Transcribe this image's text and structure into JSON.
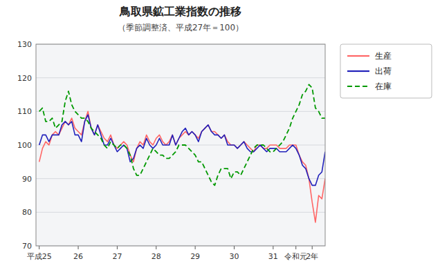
{
  "chart_data": {
    "type": "line",
    "title": "鳥取県鉱工業指数の推移",
    "subtitle": "（季節調整済、平成27年＝100）",
    "categories": [
      "平成25",
      null,
      null,
      null,
      null,
      null,
      null,
      null,
      null,
      null,
      null,
      null,
      "26",
      null,
      null,
      null,
      null,
      null,
      null,
      null,
      null,
      null,
      null,
      null,
      "27",
      null,
      null,
      null,
      null,
      null,
      null,
      null,
      null,
      null,
      null,
      null,
      "28",
      null,
      null,
      null,
      null,
      null,
      null,
      null,
      null,
      null,
      null,
      null,
      "29",
      null,
      null,
      null,
      null,
      null,
      null,
      null,
      null,
      null,
      null,
      null,
      "30",
      null,
      null,
      null,
      null,
      null,
      null,
      null,
      null,
      null,
      null,
      null,
      "31",
      null,
      null,
      null,
      null,
      null,
      null,
      "令和元",
      null,
      null,
      null,
      null,
      "2年",
      null,
      null,
      null,
      null
    ],
    "series": [
      {
        "name": "生産",
        "color": "#ff6666",
        "line_style": "solid",
        "values": [
          95,
          99,
          101,
          100,
          103,
          104,
          103,
          105,
          107,
          106,
          108,
          105,
          104,
          103,
          107,
          110,
          105,
          103,
          106,
          104,
          102,
          101,
          103,
          100,
          99,
          100,
          101,
          100,
          97,
          95,
          99,
          101,
          100,
          103,
          101,
          100,
          102,
          103,
          101,
          100,
          101,
          103,
          100,
          102,
          103,
          104,
          103,
          104,
          103,
          102,
          104,
          105,
          106,
          104,
          104,
          103,
          102,
          103,
          101,
          100,
          100,
          99,
          100,
          101,
          100,
          99,
          98,
          100,
          100,
          99,
          99,
          100,
          100,
          100,
          99,
          99,
          99,
          100,
          100,
          100,
          97,
          95,
          94,
          90,
          83,
          77,
          85,
          84,
          90
        ]
      },
      {
        "name": "出荷",
        "color": "#2222bb",
        "line_style": "solid",
        "values": [
          100,
          103,
          103,
          101,
          103,
          103,
          103,
          106,
          107,
          106,
          107,
          103,
          103,
          101,
          107,
          109,
          105,
          103,
          106,
          103,
          100,
          100,
          102,
          100,
          98,
          99,
          100,
          99,
          95,
          96,
          99,
          100,
          99,
          102,
          100,
          99,
          100,
          102,
          100,
          100,
          100,
          103,
          100,
          102,
          104,
          105,
          103,
          104,
          103,
          101,
          104,
          105,
          106,
          104,
          103,
          103,
          102,
          103,
          100,
          100,
          100,
          99,
          100,
          101,
          99,
          98,
          98,
          99,
          100,
          99,
          98,
          99,
          99,
          99,
          98,
          98,
          98,
          99,
          100,
          99,
          97,
          94,
          93,
          90,
          88,
          88,
          91,
          92,
          98
        ]
      },
      {
        "name": "在庫",
        "color": "#009900",
        "line_style": "dashed",
        "values": [
          110,
          111,
          107,
          107,
          108,
          105,
          106,
          107,
          113,
          116,
          112,
          110,
          109,
          108,
          108,
          107,
          105,
          104,
          103,
          102,
          100,
          99,
          101,
          100,
          99,
          100,
          100,
          99,
          97,
          93,
          91,
          91,
          93,
          95,
          97,
          99,
          98,
          97,
          97,
          96,
          96,
          97,
          98,
          100,
          100,
          100,
          99,
          98,
          97,
          95,
          95,
          93,
          91,
          89,
          88,
          91,
          93,
          93,
          93,
          90,
          92,
          92,
          91,
          93,
          95,
          97,
          99,
          100,
          100,
          100,
          99,
          98,
          98,
          99,
          100,
          101,
          103,
          105,
          108,
          110,
          112,
          115,
          116,
          118,
          117,
          111,
          110,
          108,
          108
        ]
      }
    ],
    "ylim": [
      70,
      130
    ],
    "yticks": [
      70,
      80,
      90,
      100,
      110,
      120,
      130
    ],
    "grid": true,
    "legend": "upper right"
  }
}
